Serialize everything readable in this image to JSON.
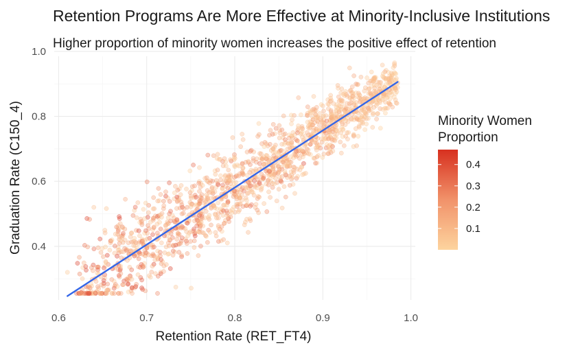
{
  "chart_data": {
    "type": "scatter",
    "title": "Retention Programs Are More Effective at Minority-Inclusive Institutions",
    "subtitle": "Higher proportion of minority women increases the positive effect of retention",
    "xlabel": "Retention Rate (RET_FT4)",
    "ylabel": "Graduation Rate (C150_4)",
    "xlim": [
      0.595,
      1.005
    ],
    "ylim": [
      0.235,
      0.985
    ],
    "x_ticks": [
      "0.6",
      "0.7",
      "0.8",
      "0.9",
      "1.0"
    ],
    "y_ticks": [
      "0.4",
      "0.6",
      "0.8",
      "1.0"
    ],
    "grid": true,
    "point_count": 1600,
    "point_alpha": 0.35,
    "trend_line": {
      "type": "linear",
      "x": [
        0.61,
        0.985
      ],
      "y": [
        0.247,
        0.906
      ],
      "color": "#3366e8"
    },
    "legend": {
      "title_lines": [
        "Minority Women",
        "Proportion"
      ],
      "placement": "right",
      "type": "colorbar",
      "range": [
        0.0,
        0.47
      ],
      "ticks": [
        "0.1",
        "0.2",
        "0.3",
        "0.4"
      ],
      "color_low": "#fdd49e",
      "color_mid": "#f1926a",
      "color_high": "#d7301f"
    },
    "sample_points": [
      {
        "x": 0.61,
        "y": 0.32,
        "c": 0.05
      },
      {
        "x": 0.64,
        "y": 0.52,
        "c": 0.08
      },
      {
        "x": 0.67,
        "y": 0.47,
        "c": 0.12
      },
      {
        "x": 0.7,
        "y": 0.4,
        "c": 0.2
      },
      {
        "x": 0.72,
        "y": 0.44,
        "c": 0.15
      },
      {
        "x": 0.74,
        "y": 0.5,
        "c": 0.18
      },
      {
        "x": 0.76,
        "y": 0.53,
        "c": 0.25
      },
      {
        "x": 0.78,
        "y": 0.55,
        "c": 0.2
      },
      {
        "x": 0.8,
        "y": 0.57,
        "c": 0.3
      },
      {
        "x": 0.82,
        "y": 0.62,
        "c": 0.15
      },
      {
        "x": 0.84,
        "y": 0.65,
        "c": 0.12
      },
      {
        "x": 0.86,
        "y": 0.7,
        "c": 0.1
      },
      {
        "x": 0.88,
        "y": 0.74,
        "c": 0.09
      },
      {
        "x": 0.9,
        "y": 0.78,
        "c": 0.08
      },
      {
        "x": 0.92,
        "y": 0.82,
        "c": 0.07
      },
      {
        "x": 0.94,
        "y": 0.86,
        "c": 0.06
      },
      {
        "x": 0.96,
        "y": 0.92,
        "c": 0.05
      },
      {
        "x": 0.98,
        "y": 0.95,
        "c": 0.04
      }
    ]
  }
}
